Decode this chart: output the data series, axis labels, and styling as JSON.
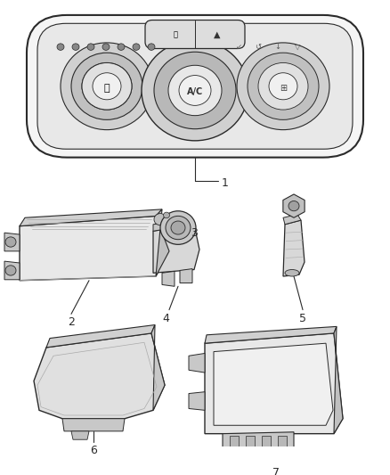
{
  "bg_color": "#ffffff",
  "line_color": "#2a2a2a",
  "fill_light": "#f0f0f0",
  "fill_mid": "#d8d8d8",
  "fill_dark": "#b8b8b8"
}
